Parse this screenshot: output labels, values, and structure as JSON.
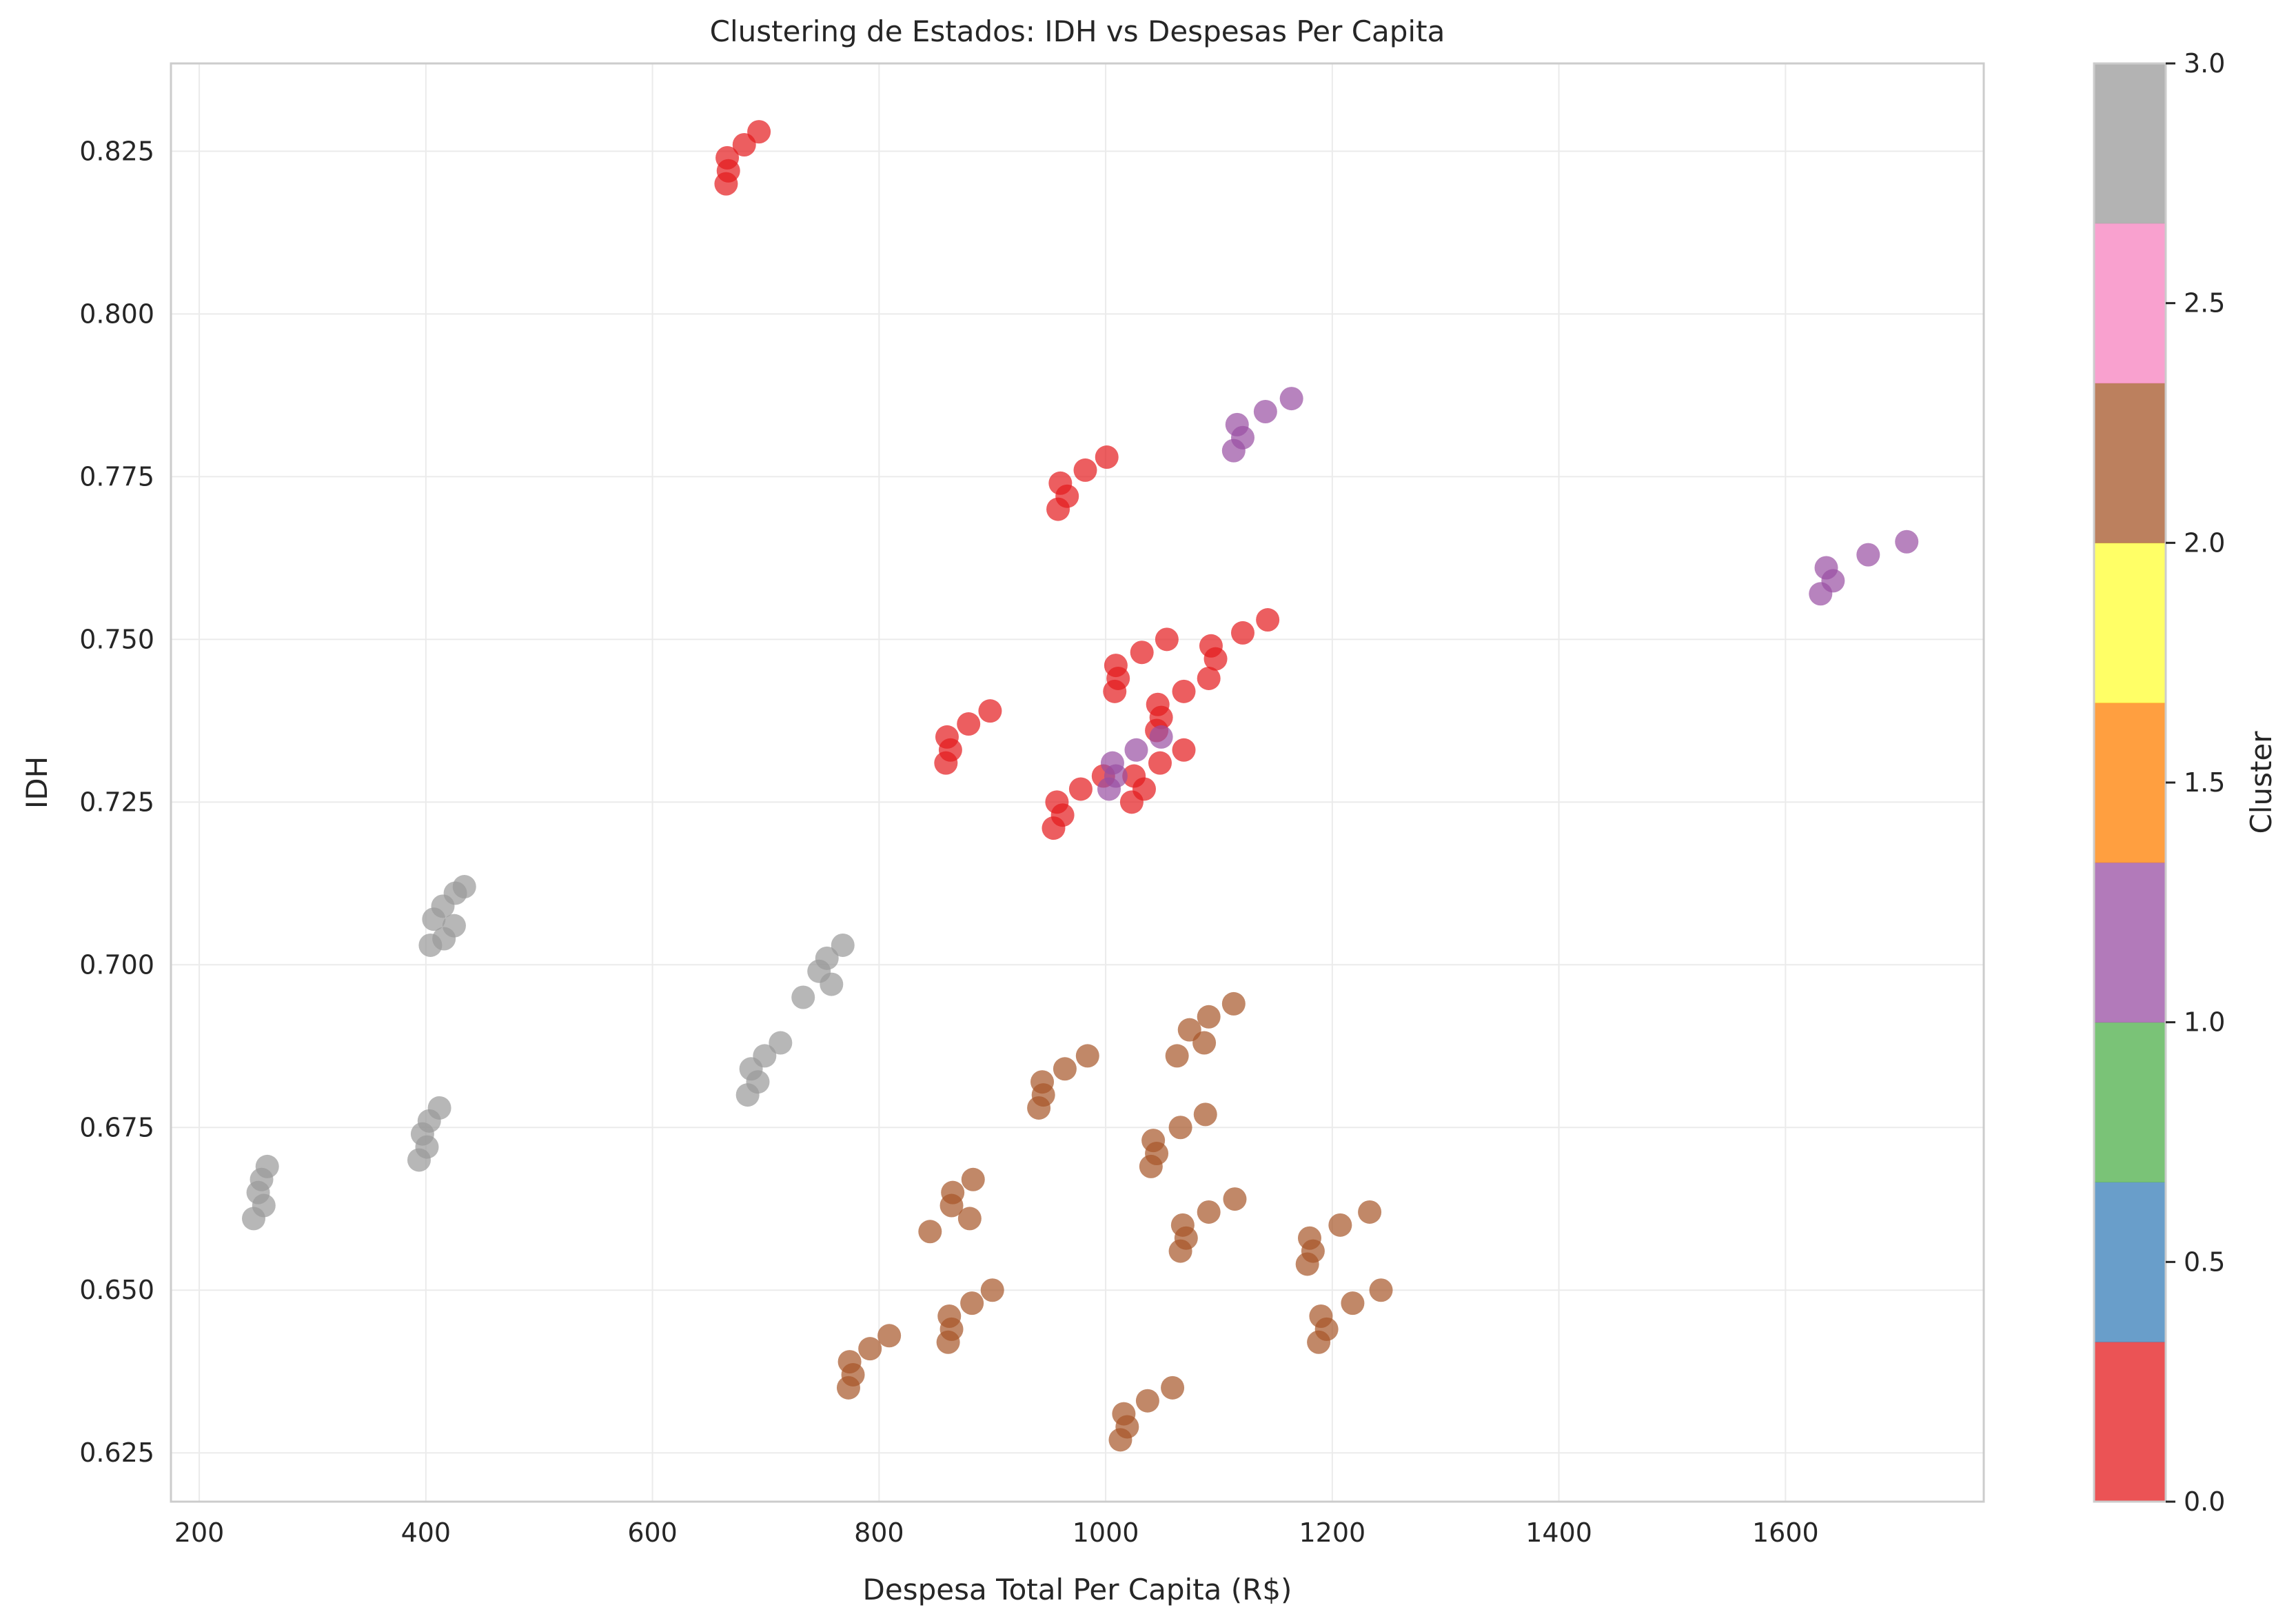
{
  "chart_data": {
    "type": "scatter",
    "title": "Clustering de Estados: IDH vs Despesas Per Capita",
    "xlabel": "Despesa Total Per Capita (R$)",
    "ylabel": "IDH",
    "xlim": [
      175,
      1775
    ],
    "ylim": [
      0.6175,
      0.8385
    ],
    "xticks": [
      "200",
      "400",
      "600",
      "800",
      "1000",
      "1200",
      "1400",
      "1600"
    ],
    "yticks": [
      "0.625",
      "0.650",
      "0.675",
      "0.700",
      "0.725",
      "0.750",
      "0.775",
      "0.800",
      "0.825"
    ],
    "grid": true,
    "colorbar": {
      "label": "Cluster",
      "range": [
        0,
        3
      ],
      "ticks": [
        "0.0",
        "0.5",
        "1.0",
        "1.5",
        "2.0",
        "2.5",
        "3.0"
      ],
      "colors": [
        "#e41a1c",
        "#377eb8",
        "#4daf4a",
        "#984ea3",
        "#ff7f00",
        "#ffff33",
        "#a65628",
        "#f781bf",
        "#999999"
      ]
    },
    "cluster_colors": {
      "0": "#e41a1c",
      "1": "#984ea3",
      "2": "#a65628",
      "3": "#999999"
    },
    "series": [
      {
        "cluster": 0,
        "points": [
          [
            665,
            0.82
          ],
          [
            667,
            0.822
          ],
          [
            666,
            0.824
          ],
          [
            681,
            0.826
          ],
          [
            694,
            0.828
          ],
          [
            958,
            0.77
          ],
          [
            966,
            0.772
          ],
          [
            960,
            0.774
          ],
          [
            982,
            0.776
          ],
          [
            1001,
            0.778
          ],
          [
            859,
            0.731
          ],
          [
            863,
            0.733
          ],
          [
            860,
            0.735
          ],
          [
            879,
            0.737
          ],
          [
            898,
            0.739
          ],
          [
            1008,
            0.742
          ],
          [
            1011,
            0.744
          ],
          [
            1009,
            0.746
          ],
          [
            1032,
            0.748
          ],
          [
            1054,
            0.75
          ],
          [
            1091,
            0.744
          ],
          [
            1097,
            0.747
          ],
          [
            1093,
            0.749
          ],
          [
            1121,
            0.751
          ],
          [
            1143,
            0.753
          ],
          [
            1045,
            0.736
          ],
          [
            1049,
            0.738
          ],
          [
            1046,
            0.74
          ],
          [
            1069,
            0.742
          ],
          [
            1025,
            0.729
          ],
          [
            1034,
            0.727
          ],
          [
            1048,
            0.731
          ],
          [
            1069,
            0.733
          ],
          [
            954,
            0.721
          ],
          [
            962,
            0.723
          ],
          [
            957,
            0.725
          ],
          [
            978,
            0.727
          ],
          [
            998,
            0.729
          ],
          [
            1023,
            0.725
          ]
        ]
      },
      {
        "cluster": 1,
        "points": [
          [
            1113,
            0.779
          ],
          [
            1121,
            0.781
          ],
          [
            1116,
            0.783
          ],
          [
            1141,
            0.785
          ],
          [
            1164,
            0.787
          ],
          [
            1631,
            0.757
          ],
          [
            1642,
            0.759
          ],
          [
            1636,
            0.761
          ],
          [
            1673,
            0.763
          ],
          [
            1707,
            0.765
          ],
          [
            1003,
            0.727
          ],
          [
            1009,
            0.729
          ],
          [
            1006,
            0.731
          ],
          [
            1027,
            0.733
          ],
          [
            1049,
            0.735
          ]
        ]
      },
      {
        "cluster": 2,
        "points": [
          [
            1113,
            0.694
          ],
          [
            1091,
            0.692
          ],
          [
            1074,
            0.69
          ],
          [
            1087,
            0.688
          ],
          [
            1063,
            0.686
          ],
          [
            984,
            0.686
          ],
          [
            964,
            0.684
          ],
          [
            944,
            0.682
          ],
          [
            945,
            0.68
          ],
          [
            941,
            0.678
          ],
          [
            1088,
            0.677
          ],
          [
            1066,
            0.675
          ],
          [
            1042,
            0.673
          ],
          [
            1045,
            0.671
          ],
          [
            1040,
            0.669
          ],
          [
            883,
            0.667
          ],
          [
            865,
            0.665
          ],
          [
            845,
            0.659
          ],
          [
            880,
            0.661
          ],
          [
            864,
            0.663
          ],
          [
            1114,
            0.664
          ],
          [
            1091,
            0.662
          ],
          [
            1068,
            0.66
          ],
          [
            1071,
            0.658
          ],
          [
            1066,
            0.656
          ],
          [
            1233,
            0.662
          ],
          [
            1207,
            0.66
          ],
          [
            1180,
            0.658
          ],
          [
            1183,
            0.656
          ],
          [
            1178,
            0.654
          ],
          [
            1243,
            0.65
          ],
          [
            1218,
            0.648
          ],
          [
            1190,
            0.646
          ],
          [
            1195,
            0.644
          ],
          [
            1188,
            0.642
          ],
          [
            900,
            0.65
          ],
          [
            882,
            0.648
          ],
          [
            862,
            0.646
          ],
          [
            864,
            0.644
          ],
          [
            861,
            0.642
          ],
          [
            809,
            0.643
          ],
          [
            792,
            0.641
          ],
          [
            774,
            0.639
          ],
          [
            777,
            0.637
          ],
          [
            773,
            0.635
          ],
          [
            1059,
            0.635
          ],
          [
            1037,
            0.633
          ],
          [
            1016,
            0.631
          ],
          [
            1019,
            0.629
          ],
          [
            1013,
            0.627
          ]
        ]
      },
      {
        "cluster": 3,
        "points": [
          [
            434,
            0.712
          ],
          [
            426,
            0.711
          ],
          [
            415,
            0.709
          ],
          [
            407,
            0.707
          ],
          [
            425,
            0.706
          ],
          [
            416,
            0.704
          ],
          [
            404,
            0.703
          ],
          [
            768,
            0.703
          ],
          [
            754,
            0.701
          ],
          [
            747,
            0.699
          ],
          [
            758,
            0.697
          ],
          [
            733,
            0.695
          ],
          [
            713,
            0.688
          ],
          [
            699,
            0.686
          ],
          [
            687,
            0.684
          ],
          [
            693,
            0.682
          ],
          [
            684,
            0.68
          ],
          [
            412,
            0.678
          ],
          [
            403,
            0.676
          ],
          [
            397,
            0.674
          ],
          [
            401,
            0.672
          ],
          [
            394,
            0.67
          ],
          [
            260,
            0.669
          ],
          [
            255,
            0.667
          ],
          [
            252,
            0.665
          ],
          [
            257,
            0.663
          ],
          [
            248,
            0.661
          ]
        ]
      }
    ]
  }
}
